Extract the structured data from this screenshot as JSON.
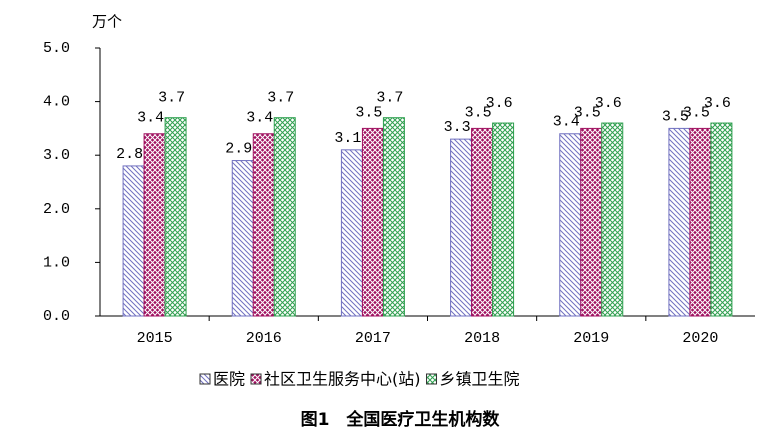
{
  "chart_data": {
    "type": "bar",
    "title": "图1　全国医疗卫生机构数",
    "y_unit": "万个",
    "categories": [
      "2015",
      "2016",
      "2017",
      "2018",
      "2019",
      "2020"
    ],
    "series": [
      {
        "name": "医院",
        "color": "#7070c0",
        "values": [
          2.8,
          2.9,
          3.1,
          3.3,
          3.4,
          3.5
        ]
      },
      {
        "name": "社区卫生服务中心(站)",
        "color": "#a01060",
        "values": [
          3.4,
          3.4,
          3.5,
          3.5,
          3.5,
          3.5
        ]
      },
      {
        "name": "乡镇卫生院",
        "color": "#30a050",
        "values": [
          3.7,
          3.7,
          3.7,
          3.6,
          3.6,
          3.6
        ]
      }
    ],
    "ylim": [
      0,
      5
    ],
    "yticks": [
      {
        "value": 0,
        "label": "0.0"
      },
      {
        "value": 1,
        "label": "1.0"
      },
      {
        "value": 2,
        "label": "2.0"
      },
      {
        "value": 3,
        "label": "3.0"
      },
      {
        "value": 4,
        "label": "4.0"
      },
      {
        "value": 5,
        "label": "5.0"
      }
    ]
  }
}
